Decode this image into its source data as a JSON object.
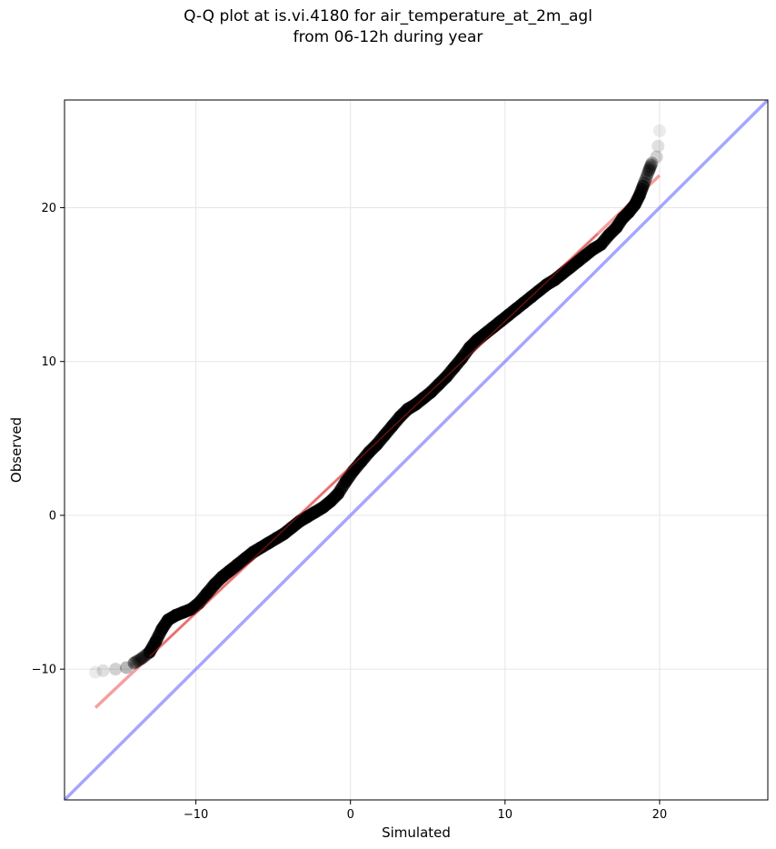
{
  "chart_data": {
    "type": "scatter",
    "title": "Q-Q plot at is.vi.4180 for air_temperature_at_2m_agl",
    "subtitle": "from 06-12h during year",
    "xlabel": "Simulated",
    "ylabel": "Observed",
    "xlim": [
      -18.5,
      27
    ],
    "ylim": [
      -18.5,
      27
    ],
    "xticks": [
      -10,
      0,
      10,
      20
    ],
    "yticks": [
      -10,
      0,
      10,
      20
    ],
    "xtick_labels": [
      "−10",
      "0",
      "10",
      "20"
    ],
    "ytick_labels": [
      "−10",
      "0",
      "10",
      "20"
    ],
    "grid": true,
    "series": [
      {
        "role": "quantiles",
        "color": "#000000",
        "points": [
          [
            -16.5,
            -10.2
          ],
          [
            -16.0,
            -10.1
          ],
          [
            -15.2,
            -10.0
          ],
          [
            -14.5,
            -9.9
          ],
          [
            -14.0,
            -9.6
          ],
          [
            -13.5,
            -9.3
          ],
          [
            -13.0,
            -8.9
          ],
          [
            -12.6,
            -8.2
          ],
          [
            -12.2,
            -7.4
          ],
          [
            -11.8,
            -6.8
          ],
          [
            -11.3,
            -6.5
          ],
          [
            -10.8,
            -6.3
          ],
          [
            -10.3,
            -6.1
          ],
          [
            -9.8,
            -5.7
          ],
          [
            -9.3,
            -5.1
          ],
          [
            -8.8,
            -4.5
          ],
          [
            -8.3,
            -4.0
          ],
          [
            -7.8,
            -3.6
          ],
          [
            -7.3,
            -3.2
          ],
          [
            -6.8,
            -2.8
          ],
          [
            -6.3,
            -2.4
          ],
          [
            -5.8,
            -2.1
          ],
          [
            -5.3,
            -1.8
          ],
          [
            -4.8,
            -1.5
          ],
          [
            -4.3,
            -1.2
          ],
          [
            -3.8,
            -0.8
          ],
          [
            -3.3,
            -0.4
          ],
          [
            -2.8,
            -0.1
          ],
          [
            -2.3,
            0.2
          ],
          [
            -1.8,
            0.5
          ],
          [
            -1.3,
            0.9
          ],
          [
            -0.8,
            1.4
          ],
          [
            -0.3,
            2.2
          ],
          [
            0.2,
            2.9
          ],
          [
            0.7,
            3.5
          ],
          [
            1.2,
            4.1
          ],
          [
            1.7,
            4.6
          ],
          [
            2.2,
            5.2
          ],
          [
            2.7,
            5.8
          ],
          [
            3.2,
            6.4
          ],
          [
            3.7,
            6.9
          ],
          [
            4.2,
            7.2
          ],
          [
            4.7,
            7.6
          ],
          [
            5.2,
            8.0
          ],
          [
            5.7,
            8.5
          ],
          [
            6.2,
            9.0
          ],
          [
            6.7,
            9.6
          ],
          [
            7.2,
            10.2
          ],
          [
            7.7,
            10.9
          ],
          [
            8.2,
            11.4
          ],
          [
            8.7,
            11.8
          ],
          [
            9.2,
            12.2
          ],
          [
            9.7,
            12.6
          ],
          [
            10.2,
            13.0
          ],
          [
            10.7,
            13.4
          ],
          [
            11.2,
            13.8
          ],
          [
            11.7,
            14.2
          ],
          [
            12.2,
            14.6
          ],
          [
            12.7,
            15.0
          ],
          [
            13.2,
            15.3
          ],
          [
            13.7,
            15.7
          ],
          [
            14.2,
            16.1
          ],
          [
            14.7,
            16.5
          ],
          [
            15.2,
            16.9
          ],
          [
            15.7,
            17.3
          ],
          [
            16.2,
            17.6
          ],
          [
            16.7,
            18.2
          ],
          [
            17.2,
            18.7
          ],
          [
            17.6,
            19.3
          ],
          [
            18.0,
            19.7
          ],
          [
            18.4,
            20.2
          ],
          [
            18.7,
            20.8
          ],
          [
            19.0,
            21.6
          ],
          [
            19.3,
            22.4
          ],
          [
            19.5,
            22.9
          ],
          [
            19.8,
            23.3
          ],
          [
            19.9,
            24.0
          ],
          [
            20.0,
            25.0
          ]
        ]
      },
      {
        "role": "fit-line",
        "color": "#f08080",
        "points": [
          [
            -16.5,
            -12.5
          ],
          [
            20.0,
            22.1
          ]
        ]
      },
      {
        "role": "one-to-one-line",
        "color": "#8080ff",
        "points": [
          [
            -18.5,
            -18.5
          ],
          [
            27,
            27
          ]
        ]
      }
    ]
  }
}
